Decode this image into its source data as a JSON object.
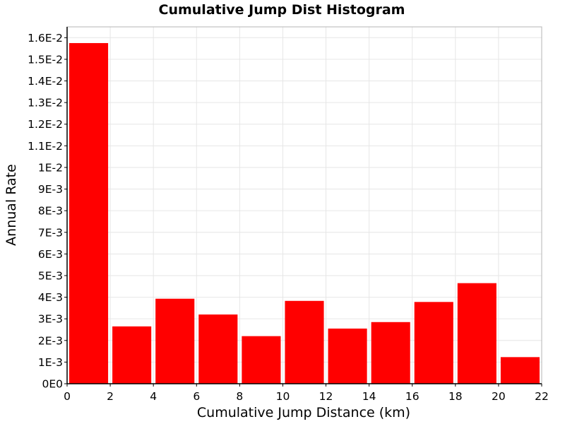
{
  "chart_data": {
    "type": "bar",
    "title": "Cumulative Jump Dist Histogram",
    "xlabel": "Cumulative Jump Distance (km)",
    "ylabel": "Annual Rate",
    "xlim": [
      0,
      22
    ],
    "ylim": [
      0,
      0.0165
    ],
    "grid": true,
    "bar_color": "#ff0000",
    "x_ticks": [
      0,
      2,
      4,
      6,
      8,
      10,
      12,
      14,
      16,
      18,
      20,
      22
    ],
    "y_ticks": [
      {
        "value": 0,
        "label": "0E0"
      },
      {
        "value": 0.001,
        "label": "1E-3"
      },
      {
        "value": 0.002,
        "label": "2E-3"
      },
      {
        "value": 0.003,
        "label": "3E-3"
      },
      {
        "value": 0.004,
        "label": "4E-3"
      },
      {
        "value": 0.005,
        "label": "5E-3"
      },
      {
        "value": 0.006,
        "label": "6E-3"
      },
      {
        "value": 0.007,
        "label": "7E-3"
      },
      {
        "value": 0.008,
        "label": "8E-3"
      },
      {
        "value": 0.009,
        "label": "9E-3"
      },
      {
        "value": 0.01,
        "label": "1E-2"
      },
      {
        "value": 0.011,
        "label": "1.1E-2"
      },
      {
        "value": 0.012,
        "label": "1.2E-2"
      },
      {
        "value": 0.013,
        "label": "1.3E-2"
      },
      {
        "value": 0.014,
        "label": "1.4E-2"
      },
      {
        "value": 0.015,
        "label": "1.5E-2"
      },
      {
        "value": 0.016,
        "label": "1.6E-2"
      }
    ],
    "bins": [
      {
        "x0": 0,
        "x1": 2,
        "value": 0.01575
      },
      {
        "x0": 2,
        "x1": 4,
        "value": 0.00265
      },
      {
        "x0": 4,
        "x1": 6,
        "value": 0.00393
      },
      {
        "x0": 6,
        "x1": 8,
        "value": 0.0032
      },
      {
        "x0": 8,
        "x1": 10,
        "value": 0.0022
      },
      {
        "x0": 10,
        "x1": 12,
        "value": 0.00383
      },
      {
        "x0": 12,
        "x1": 14,
        "value": 0.00255
      },
      {
        "x0": 14,
        "x1": 16,
        "value": 0.00285
      },
      {
        "x0": 16,
        "x1": 18,
        "value": 0.00378
      },
      {
        "x0": 18,
        "x1": 20,
        "value": 0.00465
      },
      {
        "x0": 20,
        "x1": 22,
        "value": 0.00123
      }
    ]
  }
}
